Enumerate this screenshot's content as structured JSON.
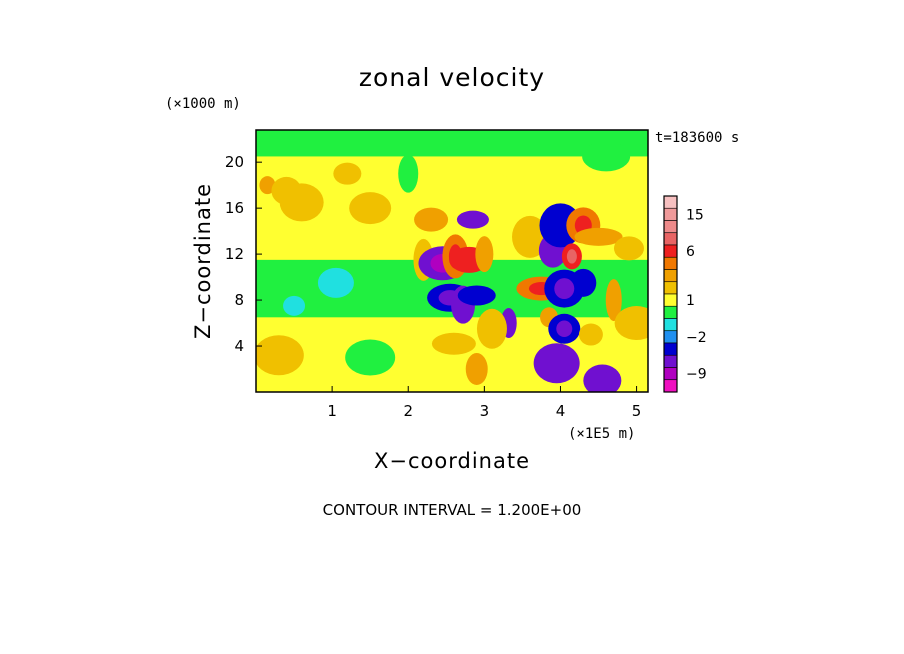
{
  "chart_data": {
    "type": "heatmap",
    "title": "zonal velocity",
    "xlabel": "X−coordinate",
    "ylabel": "Z−coordinate",
    "x_unit": "(×1E5 m)",
    "y_unit": "(×1000 m)",
    "time_label": "t=183600 s",
    "footer": "CONTOUR INTERVAL = 1.200E+00",
    "xlim": [
      0,
      5.15
    ],
    "ylim": [
      0,
      22.8
    ],
    "x_ticks": [
      1,
      2,
      3,
      4,
      5
    ],
    "y_ticks": [
      4,
      8,
      12,
      16,
      20
    ],
    "colorbar": {
      "levels": [
        {
          "value": 18,
          "color": "#f7c0c0"
        },
        {
          "value": 15,
          "color": "#f09a9a"
        },
        {
          "value": 12,
          "color": "#ee8a8a"
        },
        {
          "value": 9,
          "color": "#e86464"
        },
        {
          "value": 6,
          "color": "#ee2020"
        },
        {
          "value": 4,
          "color": "#f07800"
        },
        {
          "value": 2.5,
          "color": "#f0a000"
        },
        {
          "value": 1.6,
          "color": "#f0c000"
        },
        {
          "value": 1,
          "color": "#ffff30"
        },
        {
          "value": 0,
          "color": "#20f040"
        },
        {
          "value": -1,
          "color": "#20e0e0"
        },
        {
          "value": -2,
          "color": "#2090f0"
        },
        {
          "value": -4,
          "color": "#0000d0"
        },
        {
          "value": -7,
          "color": "#7010d0"
        },
        {
          "value": -9,
          "color": "#b000c0"
        },
        {
          "value": -12,
          "color": "#f010c0"
        }
      ],
      "tick_labels": [
        {
          "value": 15,
          "label": "15"
        },
        {
          "value": 6,
          "label": "6"
        },
        {
          "value": 1,
          "label": "1"
        },
        {
          "value": -2,
          "label": "−2"
        },
        {
          "value": -9,
          "label": "−9"
        }
      ]
    },
    "field_features": [
      {
        "x": 0.15,
        "z": 18.0,
        "value": 3
      },
      {
        "x": 0.4,
        "z": 17.5,
        "value": 2
      },
      {
        "x": 0.6,
        "z": 16.5,
        "value": 2
      },
      {
        "x": 0.5,
        "z": 7.5,
        "value": -1
      },
      {
        "x": 1.05,
        "z": 9.5,
        "value": -1
      },
      {
        "x": 0.3,
        "z": 3.2,
        "value": 2
      },
      {
        "x": 1.2,
        "z": 19.0,
        "value": 2
      },
      {
        "x": 1.5,
        "z": 16.0,
        "value": 2
      },
      {
        "x": 2.2,
        "z": 11.5,
        "value": 2
      },
      {
        "x": 2.3,
        "z": 15.0,
        "value": 3
      },
      {
        "x": 2.45,
        "z": 11.2,
        "value": -6
      },
      {
        "x": 2.62,
        "z": 11.8,
        "value": 4
      },
      {
        "x": 2.8,
        "z": 11.5,
        "value": 6
      },
      {
        "x": 3.0,
        "z": 12.0,
        "value": 3
      },
      {
        "x": 2.85,
        "z": 15.0,
        "value": -5
      },
      {
        "x": 2.55,
        "z": 8.2,
        "value": -4
      },
      {
        "x": 2.72,
        "z": 7.6,
        "value": -5
      },
      {
        "x": 2.9,
        "z": 8.4,
        "value": -3
      },
      {
        "x": 3.32,
        "z": 6.0,
        "value": -5
      },
      {
        "x": 3.1,
        "z": 5.5,
        "value": 2
      },
      {
        "x": 2.6,
        "z": 4.2,
        "value": 2
      },
      {
        "x": 2.9,
        "z": 2.0,
        "value": 3
      },
      {
        "x": 3.6,
        "z": 13.5,
        "value": 2
      },
      {
        "x": 3.75,
        "z": 9.0,
        "value": 4
      },
      {
        "x": 3.9,
        "z": 12.3,
        "value": -5
      },
      {
        "x": 4.0,
        "z": 14.5,
        "value": -3
      },
      {
        "x": 4.15,
        "z": 11.8,
        "value": 7
      },
      {
        "x": 4.3,
        "z": 14.5,
        "value": 5
      },
      {
        "x": 4.5,
        "z": 13.5,
        "value": 3
      },
      {
        "x": 4.3,
        "z": 9.5,
        "value": -3
      },
      {
        "x": 4.05,
        "z": 9.0,
        "value": -4
      },
      {
        "x": 3.85,
        "z": 6.5,
        "value": 3
      },
      {
        "x": 4.05,
        "z": 5.5,
        "value": -4
      },
      {
        "x": 3.95,
        "z": 2.5,
        "value": -5
      },
      {
        "x": 4.4,
        "z": 5.0,
        "value": 2
      },
      {
        "x": 4.55,
        "z": 1.0,
        "value": -5
      },
      {
        "x": 4.7,
        "z": 8.0,
        "value": 3
      },
      {
        "x": 4.9,
        "z": 12.5,
        "value": 2
      },
      {
        "x": 5.0,
        "z": 6.0,
        "value": 2
      },
      {
        "x": 4.95,
        "z": 18.5,
        "value": 1
      },
      {
        "x": 1.7,
        "z": 5.0,
        "value": 1
      },
      {
        "x": 1.5,
        "z": 3.0,
        "value": 0
      },
      {
        "x": 1.6,
        "z": 13.0,
        "value": 1
      },
      {
        "x": 0.9,
        "z": 13.5,
        "value": 1
      },
      {
        "x": 2.0,
        "z": 19.0,
        "value": 0
      },
      {
        "x": 3.4,
        "z": 19.5,
        "value": 1
      },
      {
        "x": 4.6,
        "z": 20.5,
        "value": 0
      }
    ]
  }
}
